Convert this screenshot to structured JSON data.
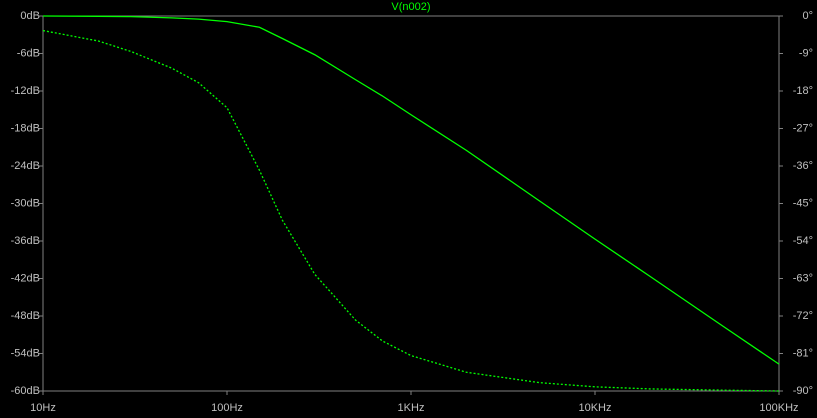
{
  "chart_data": {
    "type": "line",
    "log_x": true,
    "grid": false,
    "x": [
      10,
      20,
      30,
      50,
      70,
      100,
      150,
      200,
      300,
      500,
      700,
      1000,
      2000,
      5000,
      10000,
      20000,
      50000,
      100000
    ],
    "series": [
      {
        "name": "V(n002)",
        "color": "#00ff00",
        "dashed": false,
        "values": [
          0,
          -0.05,
          -0.1,
          -0.3,
          -0.5,
          -0.9,
          -1.8,
          -3.6,
          -6.2,
          -10.2,
          -12.8,
          -15.8,
          -21.5,
          -29.6,
          -35.7,
          -41.7,
          -49.7,
          -55.7
        ]
      },
      {
        "color": "#00ff00",
        "dashed": true,
        "axis": "y2",
        "values": [
          -3.5,
          -6,
          -8.5,
          -12.5,
          -16,
          -22,
          -37,
          -49,
          -62,
          -73,
          -78,
          -81.5,
          -85.5,
          -88,
          -89,
          -89.5,
          -89.8,
          -90
        ]
      }
    ],
    "xlim": [
      10,
      100000
    ],
    "xticks": [
      {
        "value": 10,
        "label": "10Hz"
      },
      {
        "value": 100,
        "label": "100Hz"
      },
      {
        "value": 1000,
        "label": "1KHz"
      },
      {
        "value": 10000,
        "label": "10KHz"
      },
      {
        "value": 100000,
        "label": "100KHz"
      }
    ],
    "ylim": [
      -60,
      0
    ],
    "yticks": [
      {
        "value": 0,
        "label": "0dB"
      },
      {
        "value": -6,
        "label": "-6dB"
      },
      {
        "value": -12,
        "label": "-12dB"
      },
      {
        "value": -18,
        "label": "-18dB"
      },
      {
        "value": -24,
        "label": "-24dB"
      },
      {
        "value": -30,
        "label": "-30dB"
      },
      {
        "value": -36,
        "label": "-36dB"
      },
      {
        "value": -42,
        "label": "-42dB"
      },
      {
        "value": -48,
        "label": "-48dB"
      },
      {
        "value": -54,
        "label": "-54dB"
      },
      {
        "value": -60,
        "label": "-60dB"
      }
    ],
    "y2lim": [
      -90,
      0
    ],
    "y2ticks": [
      {
        "value": 0,
        "label": "0°"
      },
      {
        "value": -9,
        "label": "-9°"
      },
      {
        "value": -18,
        "label": "-18°"
      },
      {
        "value": -27,
        "label": "-27°"
      },
      {
        "value": -36,
        "label": "-36°"
      },
      {
        "value": -45,
        "label": "-45°"
      },
      {
        "value": -54,
        "label": "-54°"
      },
      {
        "value": -63,
        "label": "-63°"
      },
      {
        "value": -72,
        "label": "-72°"
      },
      {
        "value": -81,
        "label": "-81°"
      },
      {
        "value": -90,
        "label": "-90°"
      }
    ]
  }
}
